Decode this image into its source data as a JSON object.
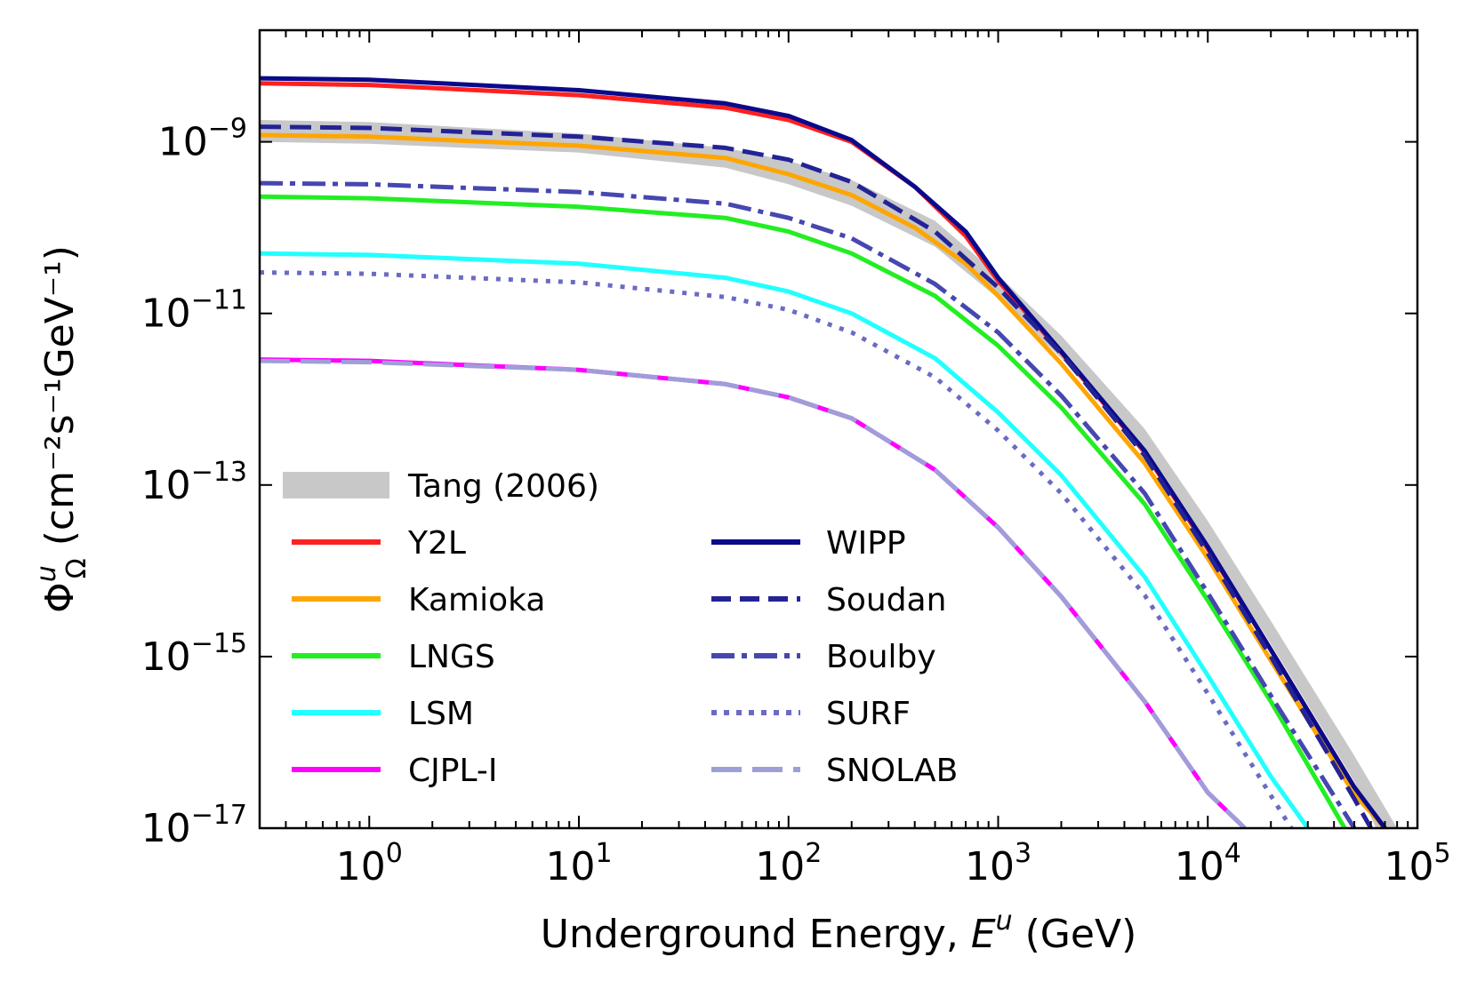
{
  "chart_data": {
    "type": "line",
    "title": "",
    "xlabel_text": "Underground Energy, ",
    "xlabel_symbol": "E",
    "xlabel_sup": "u",
    "xlabel_unit": " (GeV)",
    "ylabel_symbol": "Φ",
    "ylabel_sub": "Ω",
    "ylabel_sup": "u",
    "ylabel_unit": "(cm⁻²s⁻¹GeV⁻¹)",
    "xscale": "log",
    "yscale": "log",
    "xlim": [
      0.3,
      100000
    ],
    "ylim": [
      1e-17,
      2e-08
    ],
    "x_ticks": [
      {
        "base": "10",
        "exp": "0",
        "value": 1
      },
      {
        "base": "10",
        "exp": "1",
        "value": 10
      },
      {
        "base": "10",
        "exp": "2",
        "value": 100
      },
      {
        "base": "10",
        "exp": "3",
        "value": 1000
      },
      {
        "base": "10",
        "exp": "4",
        "value": 10000
      },
      {
        "base": "10",
        "exp": "5",
        "value": 100000
      }
    ],
    "y_ticks": [
      {
        "base": "10",
        "exp": "−9",
        "value": 1e-09
      },
      {
        "base": "10",
        "exp": "−11",
        "value": 1e-11
      },
      {
        "base": "10",
        "exp": "−13",
        "value": 1e-13
      },
      {
        "base": "10",
        "exp": "−15",
        "value": 1e-15
      },
      {
        "base": "10",
        "exp": "−17",
        "value": 1e-17
      }
    ],
    "legend_position": "lower-left",
    "reference_band": {
      "name": "Tang (2006)",
      "color": "#c8c8c8",
      "x": [
        0.3,
        1,
        10,
        50,
        100,
        200,
        500,
        1000,
        2000,
        5000,
        10000,
        20000,
        50000,
        80000
      ],
      "lower": [
        1e-09,
        9.5e-10,
        7.5e-10,
        5e-10,
        3.2e-10,
        1.8e-10,
        6e-11,
        1.5e-11,
        3e-12,
        2.5e-13,
        2e-14,
        1.4e-15,
        3.5e-17,
        3e-18
      ],
      "upper": [
        1.8e-09,
        1.7e-09,
        1.25e-09,
        8.5e-10,
        6e-10,
        3.6e-10,
        1.2e-10,
        2.8e-11,
        5.5e-12,
        4.5e-13,
        3.8e-14,
        2.6e-15,
        7e-17,
        1e-17
      ]
    },
    "series": [
      {
        "name": "Y2L",
        "color": "#ff2020",
        "dash": "solid",
        "x": [
          0.3,
          1,
          10,
          50,
          100,
          200,
          400,
          700,
          1000,
          2000,
          5000,
          10000,
          20000,
          50000,
          70000
        ],
        "values": [
          4.8e-09,
          4.6e-09,
          3.5e-09,
          2.5e-09,
          1.8e-09,
          1e-09,
          3e-10,
          8e-11,
          2.4e-11,
          3.5e-12,
          2.4e-13,
          1.8e-14,
          1.2e-15,
          3e-17,
          1e-17
        ]
      },
      {
        "name": "Kamioka",
        "color": "#ffa500",
        "dash": "solid",
        "x": [
          0.3,
          1,
          10,
          50,
          100,
          200,
          400,
          700,
          1000,
          2000,
          5000,
          10000,
          20000,
          50000,
          70000
        ],
        "values": [
          1.2e-09,
          1.15e-09,
          9e-10,
          6.5e-10,
          4.2e-10,
          2.4e-10,
          1e-10,
          3.8e-11,
          1.6e-11,
          2.6e-12,
          1.8e-13,
          1.4e-14,
          9e-16,
          2.5e-17,
          1e-17
        ]
      },
      {
        "name": "LNGS",
        "color": "#22ee22",
        "dash": "solid",
        "x": [
          0.3,
          1,
          10,
          50,
          100,
          200,
          500,
          1000,
          2000,
          5000,
          10000,
          20000,
          45000
        ],
        "values": [
          2.3e-10,
          2.2e-10,
          1.75e-10,
          1.3e-10,
          9e-11,
          5e-11,
          1.6e-11,
          4.2e-12,
          8e-13,
          6e-14,
          4.5e-15,
          3e-16,
          1e-17
        ]
      },
      {
        "name": "LSM",
        "color": "#22ffff",
        "dash": "solid",
        "x": [
          0.3,
          1,
          10,
          50,
          100,
          200,
          500,
          1000,
          2000,
          5000,
          10000,
          20000,
          30000
        ],
        "values": [
          5e-11,
          4.8e-11,
          3.8e-11,
          2.6e-11,
          1.8e-11,
          1e-11,
          3e-12,
          7e-13,
          1.3e-13,
          8.5e-15,
          6e-16,
          4e-17,
          1e-17
        ]
      },
      {
        "name": "CJPL-I",
        "color": "#ff00ff",
        "dash": "solid",
        "x": [
          0.3,
          1,
          10,
          50,
          100,
          200,
          500,
          1000,
          2000,
          5000,
          10000,
          15000
        ],
        "values": [
          2.9e-12,
          2.8e-12,
          2.2e-12,
          1.5e-12,
          1.05e-12,
          6e-13,
          1.5e-13,
          3.2e-14,
          5e-15,
          3e-16,
          2.6e-17,
          1e-17
        ]
      },
      {
        "name": "WIPP",
        "color": "#0a0a8c",
        "dash": "solid",
        "x": [
          0.3,
          1,
          10,
          50,
          100,
          200,
          400,
          700,
          1000,
          2000,
          5000,
          10000,
          20000,
          50000,
          70000
        ],
        "values": [
          5.5e-09,
          5.3e-09,
          4e-09,
          2.8e-09,
          2e-09,
          1.05e-09,
          3e-10,
          9e-11,
          2.6e-11,
          3.6e-12,
          2.5e-13,
          1.9e-14,
          1.2e-15,
          3e-17,
          1e-17
        ]
      },
      {
        "name": "Soudan",
        "color": "#232396",
        "dash": "dash",
        "x": [
          0.3,
          1,
          10,
          50,
          100,
          200,
          500,
          1000,
          2000,
          5000,
          10000,
          20000,
          50000,
          60000
        ],
        "values": [
          1.5e-09,
          1.45e-09,
          1.15e-09,
          8.5e-10,
          6.2e-10,
          3.4e-10,
          9e-11,
          2e-11,
          3.4e-12,
          2.2e-13,
          1.6e-14,
          1e-15,
          2.2e-17,
          1e-17
        ]
      },
      {
        "name": "Boulby",
        "color": "#4747b0",
        "dash": "dashdot",
        "x": [
          0.3,
          1,
          10,
          50,
          100,
          200,
          500,
          1000,
          2000,
          5000,
          10000,
          20000,
          50000
        ],
        "values": [
          3.3e-10,
          3.2e-10,
          2.6e-10,
          1.9e-10,
          1.3e-10,
          7.5e-11,
          2.2e-11,
          6e-12,
          1.1e-12,
          8e-14,
          5.5e-15,
          3.5e-16,
          1e-17
        ]
      },
      {
        "name": "SURF",
        "color": "#6b6bc4",
        "dash": "dot",
        "x": [
          0.3,
          1,
          10,
          50,
          100,
          200,
          500,
          1000,
          2000,
          5000,
          10000,
          20000,
          25000
        ],
        "values": [
          3e-11,
          2.9e-11,
          2.3e-11,
          1.55e-11,
          1.1e-11,
          6e-12,
          1.8e-12,
          4.3e-13,
          8e-14,
          5.2e-15,
          3.7e-16,
          2.4e-17,
          1e-17
        ]
      },
      {
        "name": "SNOLAB",
        "color": "#9e9ed8",
        "dash": "longdash",
        "x": [
          0.3,
          1,
          10,
          50,
          100,
          200,
          500,
          1000,
          2000,
          5000,
          10000,
          15000
        ],
        "values": [
          2.8e-12,
          2.7e-12,
          2.2e-12,
          1.5e-12,
          1.05e-12,
          6e-13,
          1.5e-13,
          3.2e-14,
          5e-15,
          3e-16,
          2.6e-17,
          1e-17
        ]
      }
    ]
  }
}
